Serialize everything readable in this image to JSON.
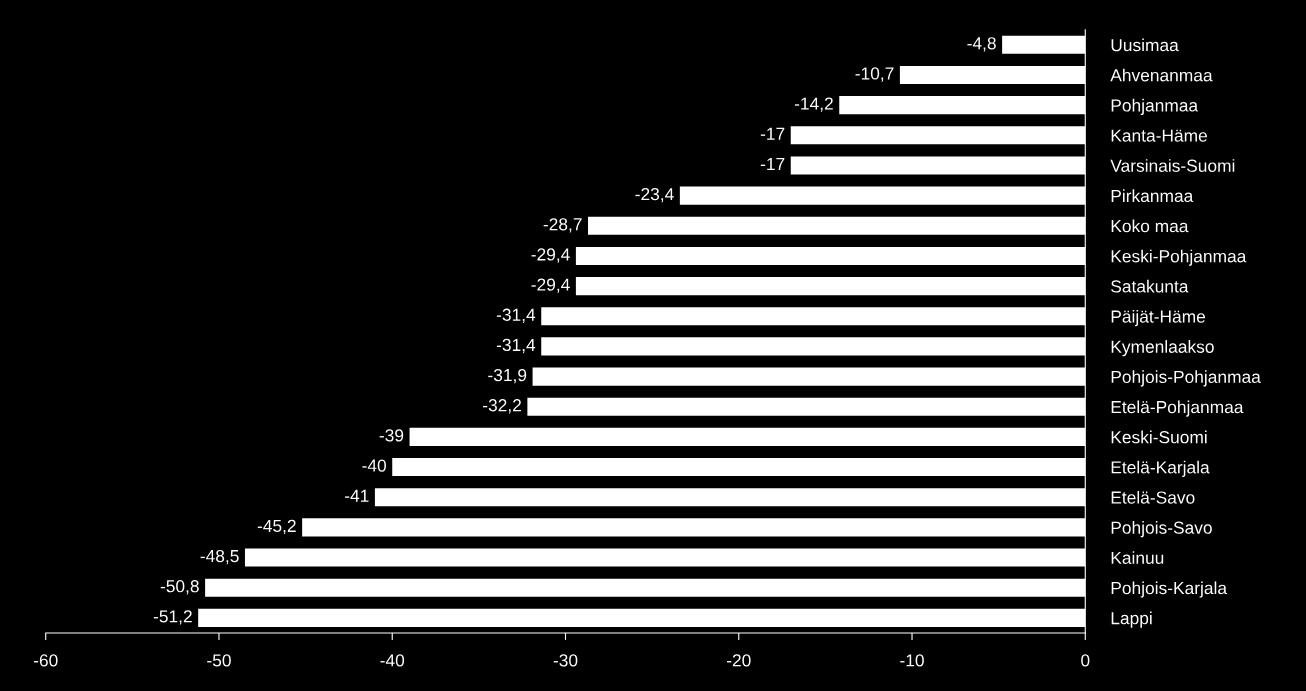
{
  "chart_data": {
    "type": "bar",
    "orientation": "horizontal",
    "color": "#ffffff",
    "categories": [
      "Uusimaa",
      "Ahvenanmaa",
      "Pohjanmaa",
      "Kanta-Häme",
      "Varsinais-Suomi",
      "Pirkanmaa",
      "Koko maa",
      "Keski-Pohjanmaa",
      "Satakunta",
      "Päijät-Häme",
      "Kymenlaakso",
      "Pohjois-Pohjanmaa",
      "Etelä-Pohjanmaa",
      "Keski-Suomi",
      "Etelä-Karjala",
      "Etelä-Savo",
      "Pohjois-Savo",
      "Kainuu",
      "Pohjois-Karjala",
      "Lappi"
    ],
    "values": [
      -4.8,
      -10.7,
      -14.2,
      -17,
      -17,
      -23.4,
      -28.7,
      -29.4,
      -29.4,
      -31.4,
      -31.4,
      -31.9,
      -32.2,
      -39,
      -40,
      -41,
      -45.2,
      -48.5,
      -50.8,
      -51.2
    ],
    "value_labels": [
      "-4,8",
      "-10,7",
      "-14,2",
      "-17",
      "-17",
      "-23,4",
      "-28,7",
      "-29,4",
      "-29,4",
      "-31,4",
      "-31,4",
      "-31,9",
      "-32,2",
      "-39",
      "-40",
      "-41",
      "-45,2",
      "-48,5",
      "-50,8",
      "-51,2"
    ],
    "xlim": [
      -60,
      0
    ],
    "xticks": [
      -60,
      -50,
      -40,
      -30,
      -20,
      -10,
      0
    ]
  }
}
